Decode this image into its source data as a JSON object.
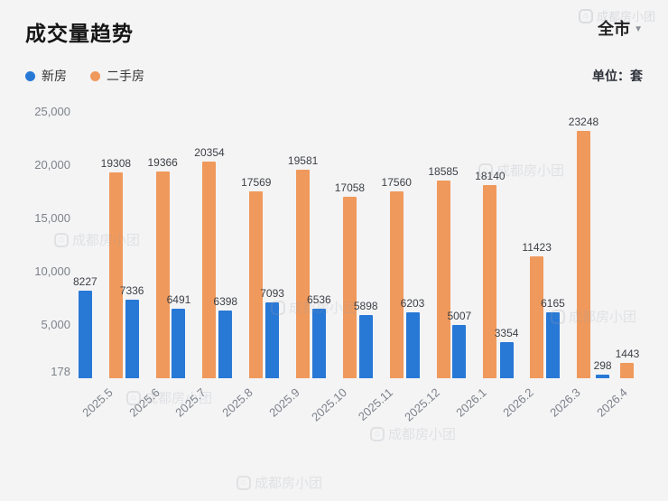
{
  "header": {
    "title": "成交量趋势",
    "scope": "全市",
    "unit_label": "单位：套"
  },
  "legend": [
    {
      "label": "新房",
      "color": "#2878d6"
    },
    {
      "label": "二手房",
      "color": "#f0995c"
    }
  ],
  "watermark": {
    "text": "成都房小团"
  },
  "chart_data": {
    "type": "bar",
    "title": "成交量趋势",
    "categories": [
      "2025.5",
      "2025.6",
      "2025.7",
      "2025.8",
      "2025.9",
      "2025.10",
      "2025.11",
      "2025.12",
      "2026.1",
      "2026.2",
      "2026.3",
      "2026.4"
    ],
    "series": [
      {
        "name": "新房",
        "color": "#2878d6",
        "values": [
          8227,
          7336,
          6491,
          6398,
          7093,
          6536,
          5898,
          6203,
          5007,
          3354,
          6165,
          298
        ]
      },
      {
        "name": "二手房",
        "color": "#f0995c",
        "values": [
          19308,
          19366,
          20354,
          17569,
          19581,
          17058,
          17560,
          18585,
          18140,
          11423,
          23248,
          1443
        ]
      }
    ],
    "xlabel": "",
    "ylabel": "",
    "yticks": [
      178,
      5000,
      10000,
      15000,
      20000,
      25000
    ],
    "ylim": [
      0,
      25000
    ],
    "grid": false,
    "legend_position": "top-left",
    "unit": "套"
  }
}
